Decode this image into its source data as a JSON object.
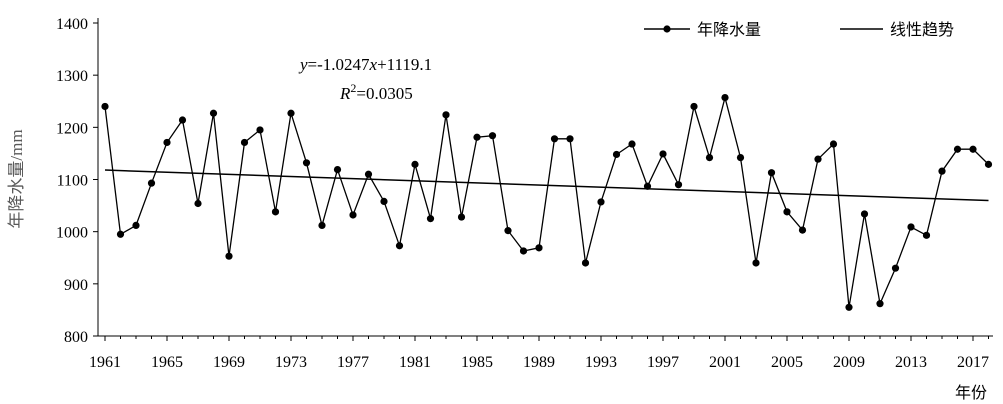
{
  "chart_data": {
    "type": "line",
    "title": "",
    "ylabel": "年降水量/mm",
    "xlabel": "年份",
    "ylim": [
      800,
      1400
    ],
    "yticks": [
      800,
      900,
      1000,
      1100,
      1200,
      1300,
      1400
    ],
    "xlim": [
      1961,
      2018
    ],
    "xticks": [
      1961,
      1965,
      1969,
      1973,
      1977,
      1981,
      1985,
      1989,
      1993,
      1997,
      2001,
      2005,
      2009,
      2013,
      2017
    ],
    "grid": false,
    "legend_position": "top-right",
    "series": [
      {
        "name": "年降水量",
        "marker": "circle",
        "x": [
          1961,
          1962,
          1963,
          1964,
          1965,
          1966,
          1967,
          1968,
          1969,
          1970,
          1971,
          1972,
          1973,
          1974,
          1975,
          1976,
          1977,
          1978,
          1979,
          1980,
          1981,
          1982,
          1983,
          1984,
          1985,
          1986,
          1987,
          1988,
          1989,
          1990,
          1991,
          1992,
          1993,
          1994,
          1995,
          1996,
          1997,
          1998,
          1999,
          2000,
          2001,
          2002,
          2003,
          2004,
          2005,
          2006,
          2007,
          2008,
          2009,
          2010,
          2011,
          2012,
          2013,
          2014,
          2015,
          2016,
          2017,
          2018
        ],
        "values": [
          1240,
          995,
          1012,
          1093,
          1171,
          1214,
          1054,
          1227,
          953,
          1171,
          1195,
          1038,
          1227,
          1132,
          1012,
          1119,
          1032,
          1110,
          1058,
          973,
          1129,
          1025,
          1224,
          1028,
          1181,
          1184,
          1002,
          963,
          969,
          1178,
          1178,
          940,
          1057,
          1148,
          1168,
          1087,
          1149,
          1090,
          1240,
          1142,
          1257,
          1142,
          940,
          1113,
          1038,
          1003,
          1139,
          1168,
          855,
          1034,
          862,
          930,
          1009,
          993,
          1116,
          1158,
          1158,
          1129
        ]
      },
      {
        "name": "线性趋势",
        "marker": "none",
        "equation": "y=-1.0247x+1119.1",
        "slope": -1.0247,
        "intercept": 1119.1,
        "x": [
          1961,
          2018
        ],
        "values": [
          1118.1,
          1059.7
        ]
      }
    ],
    "annotations": {
      "equation_y": "y",
      "equation_rest": "=-1.0247",
      "equation_x": "x",
      "equation_tail": "+1119.1",
      "r2_r": "R",
      "r2_sup": "2",
      "r2_value": "=0.0305"
    }
  }
}
